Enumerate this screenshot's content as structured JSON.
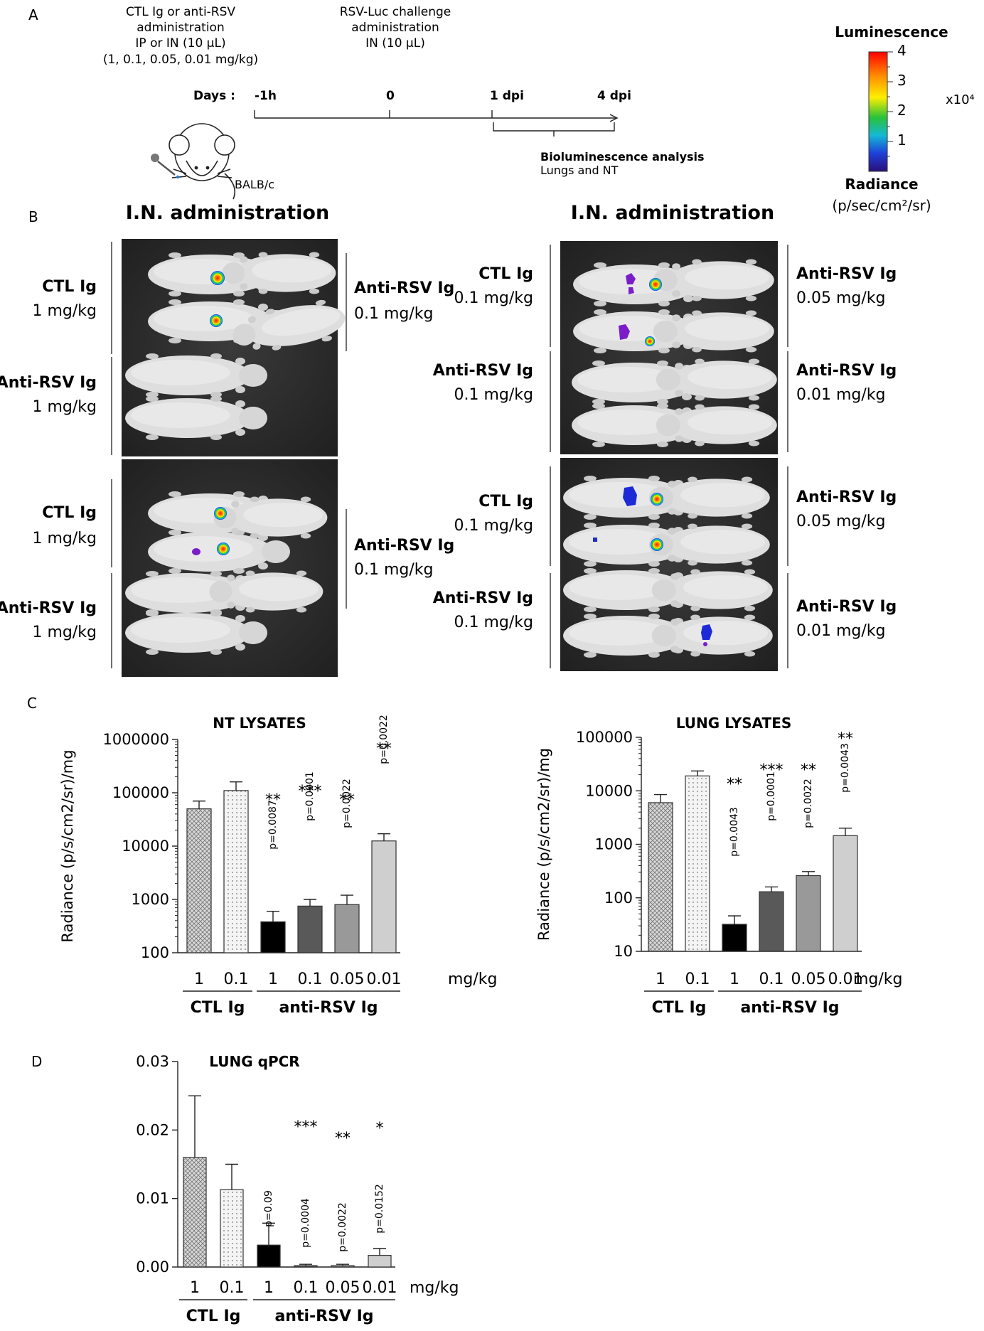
{
  "colors": {
    "ctl_1": "#cfcfcf",
    "ctl_01": "#eeeeee",
    "anti_1": "#000000",
    "anti_01": "#595959",
    "anti_005": "#999999",
    "anti_001": "#cfcfcf",
    "photo_bg": "#2c2c2c",
    "mouse": "#dcdcdc",
    "signal_red": "#ff2a00",
    "signal_blue": "#1d2bd6",
    "signal_purple": "#7a1dc9"
  },
  "panelA": {
    "letter": "A",
    "admin1": [
      "CTL Ig or anti-RSV",
      "administration",
      "IP or IN (10 µL)",
      "(1, 0.1, 0.05, 0.01 mg/kg)"
    ],
    "admin2": [
      "RSV-Luc challenge",
      "administration",
      "IN (10 µL)"
    ],
    "days_label": "Days  :",
    "timepoints": [
      "-1h",
      "0",
      "1 dpi",
      "4 dpi"
    ],
    "strain": "BALB/c",
    "analysis": [
      "Bioluminescence analysis",
      "Lungs and NT"
    ],
    "colorbar": {
      "title": "Luminescence",
      "ticks": [
        "4",
        "3",
        "2",
        "1"
      ],
      "multiplier": "x10⁴",
      "radiance": "Radiance",
      "units": "(p/sec/cm²/sr)"
    }
  },
  "panelB": {
    "letter": "B",
    "title_left": "I.N. administration",
    "title_right": "I.N. administration",
    "left_top": {
      "l1": "CTL Ig",
      "l1d": "1 mg/kg",
      "l2": "Anti-RSV Ig",
      "l2d": "1 mg/kg",
      "r1": "Anti-RSV Ig",
      "r1d": "0.1 mg/kg"
    },
    "left_bot": {
      "l1": "CTL Ig",
      "l1d": "1 mg/kg",
      "l2": "Anti-RSV Ig",
      "l2d": "1 mg/kg",
      "r1": "Anti-RSV Ig",
      "r1d": "0.1 mg/kg"
    },
    "right_top": {
      "l1": "CTL Ig",
      "l1d": "0.1 mg/kg",
      "l2": "Anti-RSV Ig",
      "l2d": "0.1 mg/kg",
      "r1": "Anti-RSV Ig",
      "r1d": "0.05 mg/kg",
      "r2": "Anti-RSV Ig",
      "r2d": "0.01 mg/kg"
    },
    "right_bot": {
      "l1": "CTL Ig",
      "l1d": "0.1 mg/kg",
      "l2": "Anti-RSV Ig",
      "l2d": "0.1 mg/kg",
      "r1": "Anti-RSV Ig",
      "r1d": "0.05 mg/kg",
      "r2": "Anti-RSV Ig",
      "r2d": "0.01 mg/kg"
    }
  },
  "panelC": {
    "letter": "C"
  },
  "panelD": {
    "letter": "D"
  },
  "chart_data": [
    {
      "type": "bar",
      "title": "NT LYSATES",
      "ylabel": "Radiance (p/s/cm2/sr)/mg",
      "log": true,
      "ylim": [
        100,
        1000000
      ],
      "yticks": [
        100,
        1000,
        10000,
        100000,
        1000000
      ],
      "yticklabels": [
        "100",
        "1000",
        "10000",
        "100000",
        "1000000"
      ],
      "categories": [
        "1",
        "0.1",
        "1",
        "0.1",
        "0.05",
        "0.01"
      ],
      "unit": "mg/kg",
      "groups": [
        {
          "label": "CTL Ig",
          "from": 0,
          "to": 1
        },
        {
          "label": "anti-RSV Ig",
          "from": 2,
          "to": 5
        }
      ],
      "values": [
        50000,
        110000,
        380,
        750,
        800,
        12500
      ],
      "errors": [
        20000,
        50000,
        220,
        250,
        400,
        4500
      ],
      "stars": [
        "",
        "",
        "**",
        "***",
        "**",
        "**"
      ],
      "pvalues": [
        "",
        "",
        "p=0.0087",
        "p=0.0001",
        "p=0.0022",
        "p=0.0022"
      ]
    },
    {
      "type": "bar",
      "title": "LUNG LYSATES",
      "ylabel": "Radiance (p/s/cm2/sr)/mg",
      "log": true,
      "ylim": [
        10,
        100000
      ],
      "yticks": [
        10,
        100,
        1000,
        10000,
        100000
      ],
      "yticklabels": [
        "10",
        "100",
        "1000",
        "10000",
        "100000"
      ],
      "categories": [
        "1",
        "0.1",
        "1",
        "0.1",
        "0.05",
        "0.01"
      ],
      "unit": "mg/kg",
      "groups": [
        {
          "label": "CTL Ig",
          "from": 0,
          "to": 1
        },
        {
          "label": "anti-RSV Ig",
          "from": 2,
          "to": 5
        }
      ],
      "values": [
        6000,
        19000,
        32,
        130,
        260,
        1450
      ],
      "errors": [
        2500,
        4500,
        14,
        30,
        50,
        550
      ],
      "stars": [
        "",
        "",
        "**",
        "***",
        "**",
        "**"
      ],
      "pvalues": [
        "",
        "",
        "p=0.0043",
        "p=0.0001",
        "p=0.0022",
        "p=0.0043"
      ]
    },
    {
      "type": "bar",
      "title": "LUNG qPCR",
      "ylabel": "",
      "log": false,
      "ylim": [
        0,
        0.03
      ],
      "yticks": [
        0,
        0.01,
        0.02,
        0.03
      ],
      "yticklabels": [
        "0.00",
        "0.01",
        "0.02",
        "0.03"
      ],
      "categories": [
        "1",
        "0.1",
        "1",
        "0.1",
        "0.05",
        "0.01"
      ],
      "unit": "mg/kg",
      "groups": [
        {
          "label": "CTL Ig",
          "from": 0,
          "to": 1
        },
        {
          "label": "anti-RSV Ig",
          "from": 2,
          "to": 5
        }
      ],
      "values": [
        0.016,
        0.0113,
        0.0032,
        0.0002,
        0.0002,
        0.0017
      ],
      "errors": [
        0.009,
        0.0037,
        0.0032,
        0.0002,
        0.0002,
        0.001
      ],
      "stars": [
        "",
        "",
        "",
        "***",
        "**",
        "*"
      ],
      "pvalues": [
        "",
        "",
        "p=0.09",
        "p=0.0004",
        "p=0.0022",
        "p=0.0152"
      ]
    }
  ]
}
